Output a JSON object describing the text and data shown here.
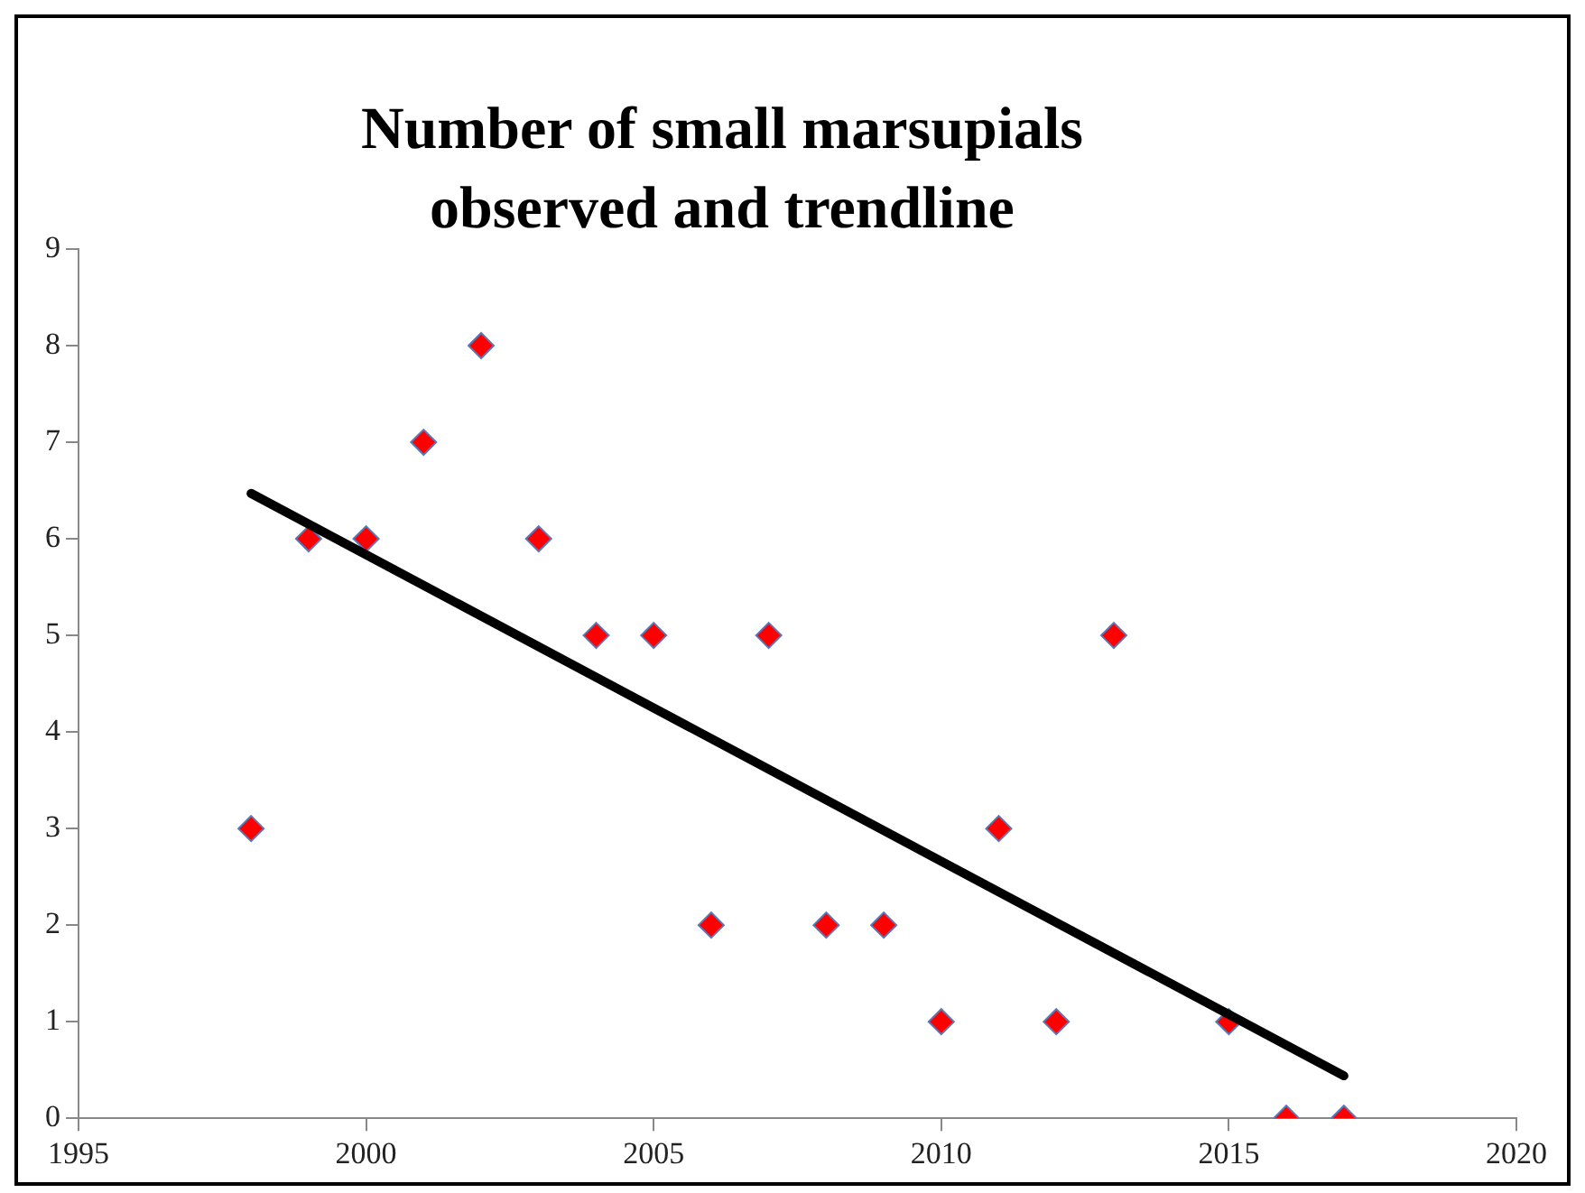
{
  "chart_data": {
    "type": "scatter",
    "title": "Number of small marsupials observed and trendline",
    "series": [
      {
        "type": "scatter",
        "color": "#ff0000",
        "marker": "diamond",
        "x": [
          1998,
          1999,
          2000,
          2001,
          2002,
          2003,
          2004,
          2005,
          2006,
          2007,
          2008,
          2009,
          2010,
          2011,
          2012,
          2013,
          2015,
          2016,
          2017
        ],
        "values": [
          3,
          6,
          6,
          7,
          8,
          6,
          5,
          5,
          2,
          5,
          2,
          2,
          1,
          3,
          1,
          5,
          1,
          0,
          0
        ]
      },
      {
        "type": "line",
        "color": "#000000",
        "marker": "none",
        "line_style": "solid",
        "x": [
          1998,
          2017
        ],
        "values": [
          6.47,
          0.44
        ]
      }
    ],
    "xlim": [
      1995,
      2020
    ],
    "xticks": [
      1995,
      2000,
      2005,
      2010,
      2015,
      2020
    ],
    "ylim": [
      0,
      9
    ],
    "yticks": [
      0,
      1,
      2,
      3,
      4,
      5,
      6,
      7,
      8,
      9
    ]
  }
}
